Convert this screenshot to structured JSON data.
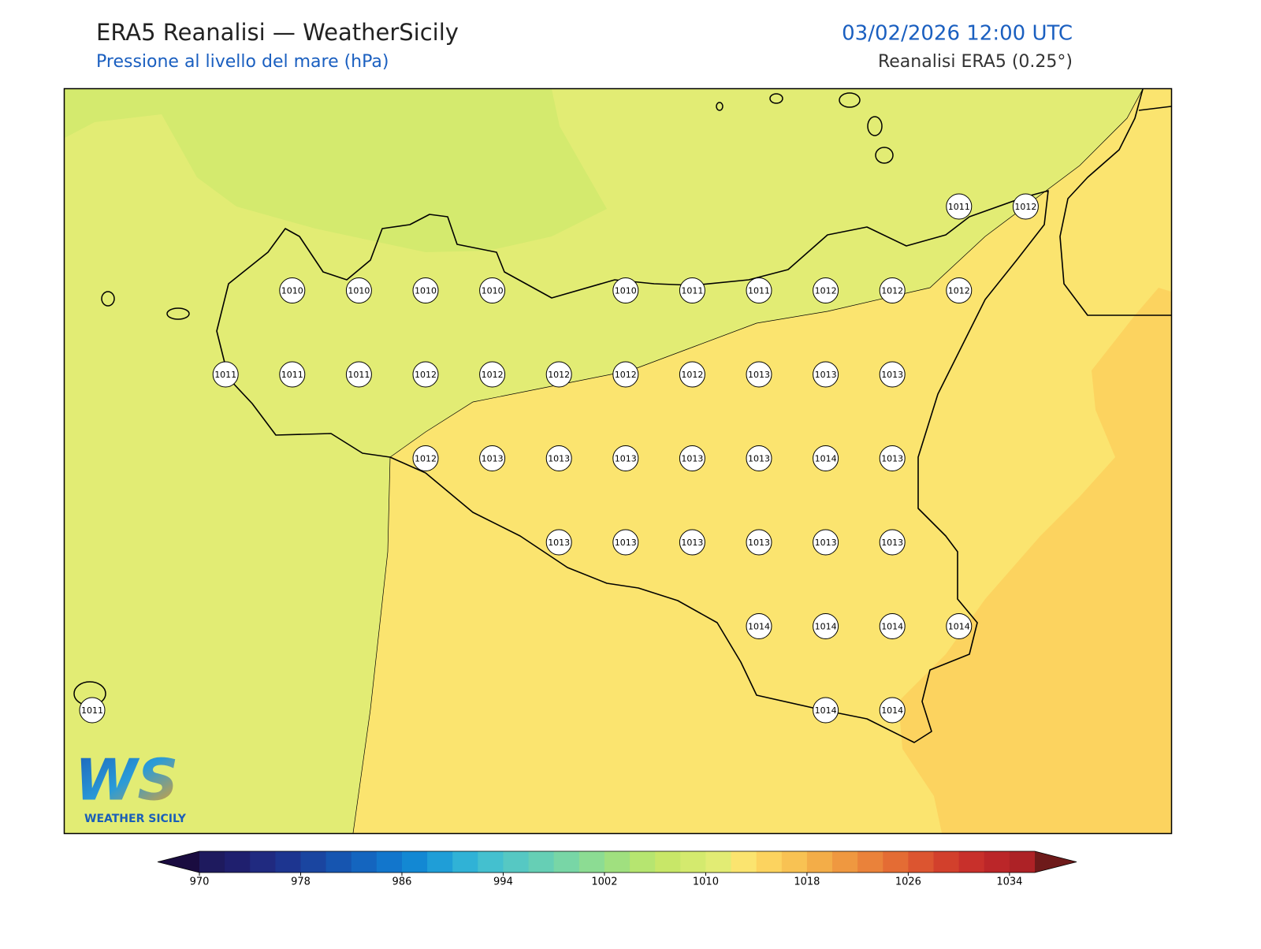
{
  "header": {
    "title": "ERA5 Reanalisi — WeatherSicily",
    "subtitle": "Pressione al livello del mare (hPa)",
    "datetime": "03/02/2026 12:00 UTC",
    "source": "Reanalisi ERA5 (0.25°)"
  },
  "pressure_grid": [
    [
      null,
      null,
      null,
      null,
      null,
      null,
      null,
      null,
      null,
      null,
      null,
      null,
      null,
      1011,
      1012
    ],
    [
      null,
      null,
      null,
      1010,
      1010,
      1010,
      1010,
      null,
      1010,
      1011,
      1011,
      1012,
      1012,
      1012,
      null
    ],
    [
      null,
      null,
      1011,
      1011,
      1011,
      1012,
      1012,
      1012,
      1012,
      1012,
      1013,
      1013,
      1013,
      null,
      null
    ],
    [
      null,
      null,
      null,
      null,
      null,
      1012,
      1013,
      1013,
      1013,
      1013,
      1013,
      1014,
      1013,
      null,
      null
    ],
    [
      null,
      null,
      null,
      null,
      null,
      null,
      null,
      1013,
      1013,
      1013,
      1013,
      1013,
      1013,
      null,
      null
    ],
    [
      null,
      null,
      null,
      null,
      null,
      null,
      null,
      null,
      null,
      null,
      1014,
      1014,
      1014,
      1014,
      null
    ],
    [
      1011,
      null,
      null,
      null,
      null,
      null,
      null,
      null,
      null,
      null,
      null,
      1014,
      1014,
      null,
      null
    ]
  ],
  "colorbar": {
    "range": [
      970,
      1036
    ],
    "ticks": [
      970,
      978,
      986,
      994,
      1002,
      1010,
      1018,
      1026,
      1034
    ],
    "colors": [
      "#1e1a5e",
      "#1f1f6e",
      "#202a80",
      "#1d3590",
      "#1a45a0",
      "#1655b0",
      "#1465bf",
      "#1276cc",
      "#1388d3",
      "#1f9ed7",
      "#30b2d6",
      "#44c0cf",
      "#56c8c3",
      "#66cfb5",
      "#78d6a6",
      "#8cdc93",
      "#a0e07f",
      "#b6e570",
      "#c8e768",
      "#d4ea6e",
      "#e2ec74",
      "#fbe46f",
      "#fcd35f",
      "#f8c253",
      "#f3ad48",
      "#ef9840",
      "#ea823a",
      "#e46c34",
      "#dc5530",
      "#d2402c",
      "#c8302b",
      "#bb2629",
      "#ad2226"
    ],
    "under_color": "#1a0c40",
    "over_color": "#6e1a1a"
  },
  "logo": {
    "mark": "WS",
    "name": "WEATHER SICILY"
  }
}
